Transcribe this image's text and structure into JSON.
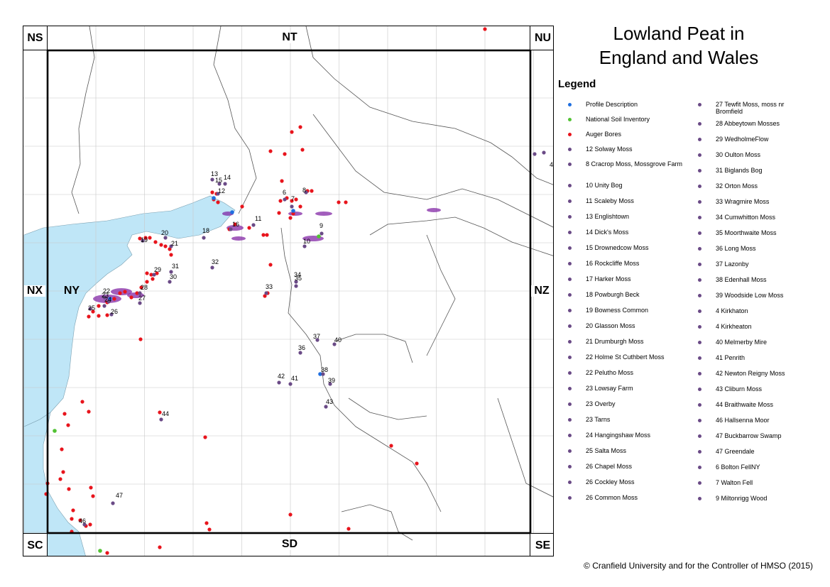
{
  "title_line1": "Lowland Peat in",
  "title_line2": "England and Wales",
  "legend_heading": "Legend",
  "colors": {
    "sea": "#bfe6f7",
    "profile_description": "#1f6fe0",
    "national_soil_inventory": "#52c234",
    "auger_bores": "#e8141c",
    "site": "#6a4a86",
    "peat_patches": "#7a1aa0",
    "grid_line": "#c8c8c8",
    "boundary": "#555555"
  },
  "grid_squares": {
    "top_left": "NS",
    "top_center": "NT",
    "top_right": "NU",
    "mid_left": "NX",
    "mid_inner": "NY",
    "mid_right": "NZ",
    "bottom_left": "SC",
    "bottom_center": "SD",
    "bottom_right": "SE"
  },
  "legend": {
    "col1": [
      {
        "label": "Profile Description",
        "type": "profile"
      },
      {
        "label": "National Soil Inventory",
        "type": "nsi"
      },
      {
        "label": "Auger Bores",
        "type": "auger"
      },
      {
        "label": "12 Solway Moss",
        "type": "site"
      },
      {
        "label": "8 Cracrop Moss, Mossgrove Farm",
        "type": "site"
      },
      {
        "label": "10 Unity Bog",
        "type": "site"
      },
      {
        "label": "11 Scaleby Moss",
        "type": "site"
      },
      {
        "label": "13 Englishtown",
        "type": "site"
      },
      {
        "label": "14 Dick's Moss",
        "type": "site"
      },
      {
        "label": "15 Drownedcow Moss",
        "type": "site"
      },
      {
        "label": "16 Rockcliffe Moss",
        "type": "site"
      },
      {
        "label": "17 Harker Moss",
        "type": "site"
      },
      {
        "label": "18 Powburgh Beck",
        "type": "site"
      },
      {
        "label": "19 Bowness Common",
        "type": "site"
      },
      {
        "label": "20 Glasson Moss",
        "type": "site"
      },
      {
        "label": "21 Drumburgh Moss",
        "type": "site"
      },
      {
        "label": "22 Holme St Cuthbert Moss",
        "type": "site"
      },
      {
        "label": "22 Pelutho Moss",
        "type": "site"
      },
      {
        "label": "23 Lowsay Farm",
        "type": "site"
      },
      {
        "label": "23 Overby",
        "type": "site"
      },
      {
        "label": "23 Tarns",
        "type": "site"
      },
      {
        "label": "24 Hangingshaw Moss",
        "type": "site"
      },
      {
        "label": "25 Salta Moss",
        "type": "site"
      },
      {
        "label": "26 Chapel Moss",
        "type": "site"
      },
      {
        "label": "26 Cockley Moss",
        "type": "site"
      },
      {
        "label": "26 Common Moss",
        "type": "site"
      }
    ],
    "col2": [
      {
        "label": "27 Tewfit Moss, moss nr Bromfield",
        "type": "site"
      },
      {
        "label": "28 Abbeytown Mosses",
        "type": "site"
      },
      {
        "label": "29 WedholmeFlow",
        "type": "site"
      },
      {
        "label": "30 Oulton Moss",
        "type": "site"
      },
      {
        "label": "31 Biglands Bog",
        "type": "site"
      },
      {
        "label": "32 Orton Moss",
        "type": "site"
      },
      {
        "label": "33 Wragmire Moss",
        "type": "site"
      },
      {
        "label": "34 Cumwhitton Moss",
        "type": "site"
      },
      {
        "label": "35 Moorthwaite Moss",
        "type": "site"
      },
      {
        "label": "36 Long Moss",
        "type": "site"
      },
      {
        "label": "37 Lazonby",
        "type": "site"
      },
      {
        "label": "38 Edenhall Moss",
        "type": "site"
      },
      {
        "label": "39 Woodside Low Moss",
        "type": "site"
      },
      {
        "label": "4 Kirkhaton",
        "type": "site"
      },
      {
        "label": "4 Kirkheaton",
        "type": "site"
      },
      {
        "label": "40 Melmerby Mire",
        "type": "site"
      },
      {
        "label": "41 Penrith",
        "type": "site"
      },
      {
        "label": "42 Newton Reigny Moss",
        "type": "site"
      },
      {
        "label": "43 Cliburn Moss",
        "type": "site"
      },
      {
        "label": "44 Braithwaite Moss",
        "type": "site"
      },
      {
        "label": "46 Hallsenna Moor",
        "type": "site"
      },
      {
        "label": "47 Buckbarrow Swamp",
        "type": "site"
      },
      {
        "label": "47 Greendale",
        "type": "site"
      },
      {
        "label": "6 Bolton FellNY",
        "type": "site"
      },
      {
        "label": "7 Walton Fell",
        "type": "site"
      },
      {
        "label": "9 Miltonrigg Wood",
        "type": "site"
      }
    ]
  },
  "site_labels": [
    "13",
    "15",
    "14",
    "12",
    "6",
    "7",
    "8",
    "11",
    "16",
    "18",
    "9",
    "10",
    "19",
    "20",
    "21",
    "32",
    "31",
    "29",
    "30",
    "28",
    "34",
    "35",
    "33",
    "22",
    "23",
    "24",
    "25",
    "26",
    "27",
    "37",
    "40",
    "36",
    "38",
    "39",
    "42",
    "41",
    "43",
    "44",
    "47",
    "46",
    "4"
  ],
  "copyright": "© Cranfield University and for the Controller of HMSO (2015)"
}
